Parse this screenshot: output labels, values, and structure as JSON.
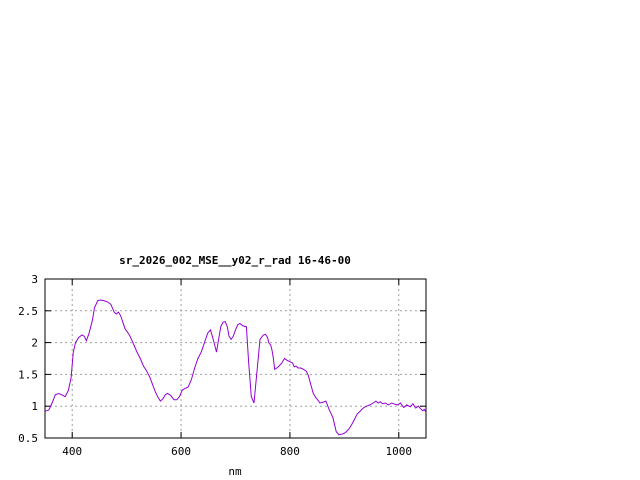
{
  "chart_data": {
    "type": "line",
    "title": "sr_2026_002_MSE__y02_r_rad 16-46-00",
    "xlabel": "nm",
    "ylabel": "",
    "xlim": [
      350,
      1050
    ],
    "ylim": [
      0.5,
      3
    ],
    "x_ticks": [
      400,
      600,
      800,
      1000
    ],
    "x_tick_labels": [
      "400",
      "600",
      "800",
      "1000"
    ],
    "y_ticks": [
      0.5,
      1,
      1.5,
      2,
      2.5,
      3
    ],
    "y_tick_labels": [
      "0.5",
      "1",
      "1.5",
      "2",
      "2.5",
      "3"
    ],
    "grid": true,
    "line_color": "#9400d3",
    "series": [
      {
        "x": [
          350,
          357,
          363,
          369,
          375,
          381,
          387,
          393,
          398,
          402,
          406,
          412,
          418,
          422,
          426,
          431,
          437,
          441,
          447,
          452,
          458,
          465,
          471,
          477,
          481,
          485,
          489,
          493,
          497,
          501,
          505,
          509,
          513,
          519,
          525,
          531,
          537,
          543,
          548,
          553,
          557,
          562,
          567,
          571,
          575,
          581,
          587,
          592,
          597,
          602,
          607,
          613,
          619,
          625,
          631,
          637,
          643,
          649,
          654,
          659,
          665,
          669,
          673,
          677,
          681,
          685,
          688,
          692,
          696,
          700,
          704,
          708,
          711,
          715,
          720,
          724,
          729,
          734,
          739,
          745,
          751,
          755,
          759,
          761,
          763,
          765,
          767,
          769,
          772,
          776,
          780,
          785,
          790,
          795,
          800,
          805,
          808,
          811,
          815,
          820,
          825,
          830,
          834,
          838,
          843,
          848,
          851,
          855,
          860,
          866,
          872,
          879,
          885,
          890,
          895,
          899,
          904,
          909,
          914,
          919,
          924,
          929,
          932,
          936,
          941,
          947,
          953,
          958,
          962,
          966,
          970,
          975,
          981,
          987,
          993,
          998,
          1003,
          1009,
          1015,
          1021,
          1026,
          1031,
          1036,
          1040,
          1044,
          1047,
          1050
        ],
        "y": [
          0.92,
          0.94,
          1.05,
          1.18,
          1.2,
          1.18,
          1.15,
          1.25,
          1.45,
          1.85,
          2.0,
          2.08,
          2.12,
          2.1,
          2.03,
          2.15,
          2.35,
          2.55,
          2.66,
          2.67,
          2.66,
          2.64,
          2.6,
          2.48,
          2.45,
          2.48,
          2.42,
          2.32,
          2.22,
          2.17,
          2.12,
          2.05,
          1.97,
          1.85,
          1.75,
          1.63,
          1.55,
          1.45,
          1.33,
          1.22,
          1.15,
          1.08,
          1.12,
          1.18,
          1.2,
          1.17,
          1.1,
          1.1,
          1.15,
          1.25,
          1.28,
          1.3,
          1.42,
          1.6,
          1.75,
          1.85,
          2.0,
          2.15,
          2.2,
          2.05,
          1.85,
          2.05,
          2.25,
          2.32,
          2.33,
          2.25,
          2.1,
          2.05,
          2.1,
          2.2,
          2.28,
          2.3,
          2.28,
          2.26,
          2.25,
          1.7,
          1.15,
          1.05,
          1.5,
          2.05,
          2.12,
          2.13,
          2.08,
          2.0,
          1.98,
          1.95,
          1.88,
          1.78,
          1.58,
          1.6,
          1.63,
          1.68,
          1.75,
          1.72,
          1.7,
          1.68,
          1.62,
          1.63,
          1.6,
          1.6,
          1.58,
          1.55,
          1.48,
          1.35,
          1.2,
          1.13,
          1.1,
          1.05,
          1.06,
          1.08,
          0.95,
          0.82,
          0.6,
          0.55,
          0.56,
          0.57,
          0.6,
          0.65,
          0.72,
          0.8,
          0.88,
          0.92,
          0.95,
          0.98,
          1.0,
          1.02,
          1.05,
          1.08,
          1.05,
          1.07,
          1.04,
          1.05,
          1.02,
          1.05,
          1.03,
          1.02,
          1.05,
          0.98,
          1.02,
          0.99,
          1.04,
          0.97,
          1.0,
          0.96,
          0.93,
          0.95,
          0.9
        ]
      }
    ]
  }
}
